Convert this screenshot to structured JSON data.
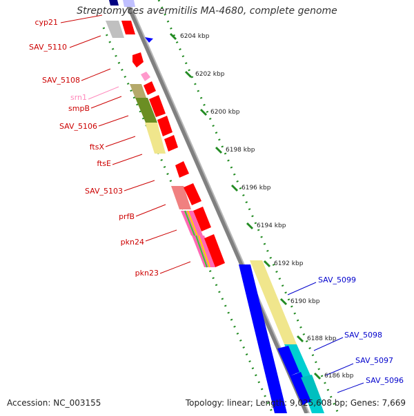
{
  "title": "Streptomyces avermitilis MA-4680, complete genome",
  "footer": {
    "accession": "Accession: NC_003155",
    "topology": "Topology: linear; Length: 9,025,608 bp; Genes: 7,669"
  },
  "colors": {
    "backbone": "#808080",
    "ruler": "#228b22",
    "forward": "#ff0000",
    "reverse": "#0000ff",
    "label_forward": "#cc0000",
    "label_reverse": "#0000cc",
    "label_rna": "#ff88bb"
  },
  "scale_ticks": [
    {
      "kbp": 6204,
      "label": "6204 kbp"
    },
    {
      "kbp": 6202,
      "label": "6202 kbp"
    },
    {
      "kbp": 6200,
      "label": "6200 kbp"
    },
    {
      "kbp": 6198,
      "label": "6198 kbp"
    },
    {
      "kbp": 6196,
      "label": "6196 kbp"
    },
    {
      "kbp": 6194,
      "label": "6194 kbp"
    },
    {
      "kbp": 6192,
      "label": "6192 kbp"
    },
    {
      "kbp": 6190,
      "label": "6190 kbp"
    },
    {
      "kbp": 6188,
      "label": "6188 kbp"
    },
    {
      "kbp": 6186,
      "label": "6186 kbp"
    }
  ],
  "left_labels": [
    {
      "name": "cyp21",
      "color": "#cc0000"
    },
    {
      "name": "SAV_5110",
      "color": "#cc0000"
    },
    {
      "name": "SAV_5108",
      "color": "#cc0000"
    },
    {
      "name": "srn1",
      "color": "#ff88bb"
    },
    {
      "name": "smpB",
      "color": "#cc0000"
    },
    {
      "name": "SAV_5106",
      "color": "#cc0000"
    },
    {
      "name": "ftsX",
      "color": "#cc0000"
    },
    {
      "name": "ftsE",
      "color": "#cc0000"
    },
    {
      "name": "SAV_5103",
      "color": "#cc0000"
    },
    {
      "name": "prfB",
      "color": "#cc0000"
    },
    {
      "name": "pkn24",
      "color": "#cc0000"
    },
    {
      "name": "pkn23",
      "color": "#cc0000"
    }
  ],
  "right_labels": [
    {
      "name": "SAV_5099",
      "color": "#0000cc"
    },
    {
      "name": "SAV_5098",
      "color": "#0000cc"
    },
    {
      "name": "SAV_5097",
      "color": "#0000cc"
    },
    {
      "name": "SAV_5096",
      "color": "#0000cc"
    }
  ]
}
